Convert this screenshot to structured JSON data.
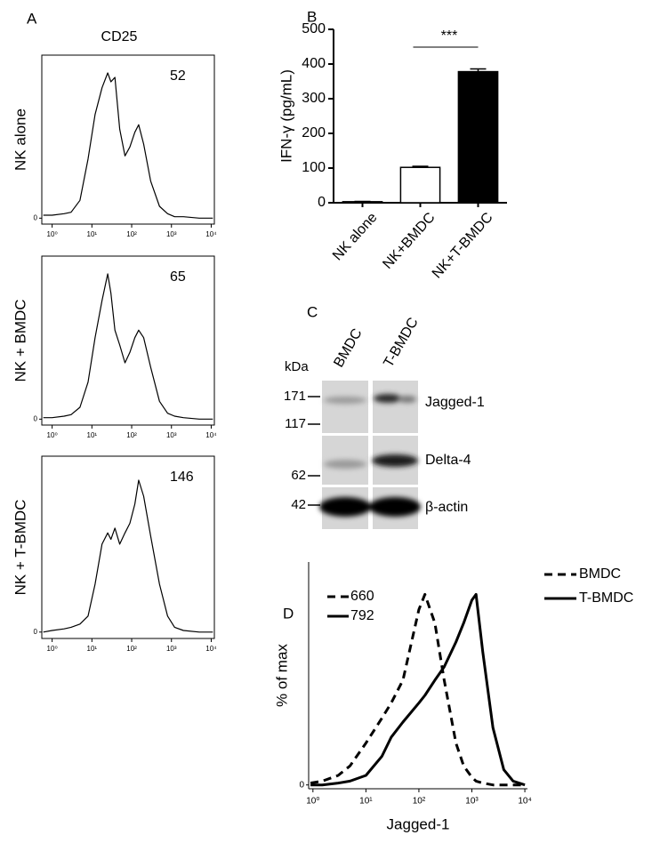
{
  "chart_data": [
    {
      "type": "line",
      "panel": "A",
      "title": "CD25",
      "ylabel": "NK alone",
      "annotation": 52,
      "log_x": true,
      "color": "#000000",
      "x": [
        0.6,
        1,
        2,
        3,
        5,
        8,
        12,
        18,
        25,
        30,
        38,
        50,
        68,
        90,
        120,
        150,
        200,
        300,
        500,
        800,
        1200,
        2000,
        5000,
        11000
      ],
      "values": [
        2,
        2,
        3,
        4,
        12,
        40,
        70,
        88,
        98,
        92,
        95,
        60,
        42,
        48,
        58,
        63,
        50,
        25,
        8,
        3,
        1,
        1,
        0,
        0
      ],
      "xlim": [
        0.55,
        12000
      ],
      "xticks": [
        {
          "value": 1,
          "label": "10⁰"
        },
        {
          "value": 10,
          "label": "10¹"
        },
        {
          "value": 100,
          "label": "10²"
        },
        {
          "value": 1000,
          "label": "10³"
        },
        {
          "value": 10000,
          "label": "10⁴"
        }
      ],
      "ylim": [
        -4,
        110
      ],
      "yticks": [
        0
      ]
    },
    {
      "type": "line",
      "ylabel": "NK + BMDC",
      "annotation": 65,
      "log_x": true,
      "color": "#000000",
      "x": [
        0.6,
        1,
        2,
        3,
        5,
        8,
        12,
        18,
        25,
        30,
        38,
        50,
        68,
        90,
        120,
        150,
        200,
        300,
        500,
        800,
        1200,
        2000,
        5000,
        11000
      ],
      "values": [
        1,
        1,
        2,
        3,
        8,
        25,
        55,
        80,
        98,
        85,
        60,
        50,
        38,
        45,
        55,
        60,
        55,
        35,
        12,
        4,
        2,
        1,
        0,
        0
      ],
      "xlim": [
        0.55,
        12000
      ],
      "xticks": [
        {
          "value": 1,
          "label": "10⁰"
        },
        {
          "value": 10,
          "label": "10¹"
        },
        {
          "value": 100,
          "label": "10²"
        },
        {
          "value": 1000,
          "label": "10³"
        },
        {
          "value": 10000,
          "label": "10⁴"
        }
      ],
      "ylim": [
        -4,
        110
      ],
      "yticks": [
        0
      ]
    },
    {
      "type": "line",
      "ylabel": "NK + T-BMDC",
      "annotation": 146,
      "log_x": true,
      "color": "#000000",
      "x": [
        0.6,
        1,
        2,
        3,
        5,
        8,
        12,
        18,
        25,
        30,
        38,
        50,
        68,
        90,
        120,
        150,
        200,
        300,
        500,
        800,
        1200,
        2000,
        5000,
        11000
      ],
      "values": [
        0,
        1,
        2,
        3,
        5,
        10,
        30,
        55,
        62,
        58,
        65,
        55,
        62,
        68,
        80,
        95,
        85,
        60,
        30,
        10,
        3,
        1,
        0,
        0
      ],
      "xlim": [
        0.55,
        12000
      ],
      "xticks": [
        {
          "value": 1,
          "label": "10⁰"
        },
        {
          "value": 10,
          "label": "10¹"
        },
        {
          "value": 100,
          "label": "10²"
        },
        {
          "value": 1000,
          "label": "10³"
        },
        {
          "value": 10000,
          "label": "10⁴"
        }
      ],
      "ylim": [
        -4,
        110
      ],
      "yticks": [
        0
      ]
    },
    {
      "type": "bar",
      "panel": "B",
      "ylabel": "IFN-γ (pg/mL)",
      "categories": [
        "NK alone",
        "NK+BMDC",
        "NK+T-BMDC"
      ],
      "values": [
        3,
        102,
        378
      ],
      "errors": [
        1,
        3,
        8
      ],
      "colors": [
        "#ffffff",
        "#ffffff",
        "#000000"
      ],
      "ylim": [
        0,
        500
      ],
      "yticks": [
        0,
        100,
        200,
        300,
        400,
        500
      ],
      "significance": "***"
    },
    {
      "type": "line",
      "panel": "D",
      "xlabel": "Jagged-1",
      "ylabel": "% of max",
      "log_x": true,
      "x": [
        0.9,
        1.5,
        3,
        5,
        10,
        20,
        30,
        50,
        100,
        130,
        200,
        300,
        500,
        700,
        1000,
        1200,
        1600,
        2500,
        4000,
        6000,
        10000
      ],
      "series": [
        {
          "name": "BMDC",
          "color": "#000000",
          "dash": true,
          "mfi": 660,
          "values": [
            1,
            2,
            5,
            10,
            22,
            35,
            43,
            55,
            92,
            100,
            85,
            55,
            22,
            10,
            4,
            2,
            1,
            0,
            0,
            0,
            0
          ]
        },
        {
          "name": "T-BMDC",
          "color": "#000000",
          "dash": false,
          "mfi": 792,
          "values": [
            0,
            0,
            1,
            2,
            5,
            15,
            25,
            33,
            43,
            47,
            55,
            62,
            75,
            85,
            97,
            100,
            70,
            30,
            8,
            2,
            0
          ]
        }
      ],
      "xlim": [
        0.83,
        11200
      ],
      "xticks": [
        {
          "value": 1,
          "label": "10⁰"
        },
        {
          "value": 10,
          "label": "10¹"
        },
        {
          "value": 100,
          "label": "10²"
        },
        {
          "value": 1000,
          "label": "10³"
        },
        {
          "value": 10000,
          "label": "10⁴"
        }
      ],
      "ylim": [
        -2,
        117
      ],
      "yticks": [
        0
      ]
    }
  ],
  "blot": {
    "panel": "C",
    "unit": "kDa",
    "lanes": [
      "BMDC",
      "T-BMDC"
    ],
    "markers": [
      171,
      117,
      62,
      42
    ],
    "proteins": [
      "Jagged-1",
      "Delta-4",
      "β-actin"
    ]
  }
}
